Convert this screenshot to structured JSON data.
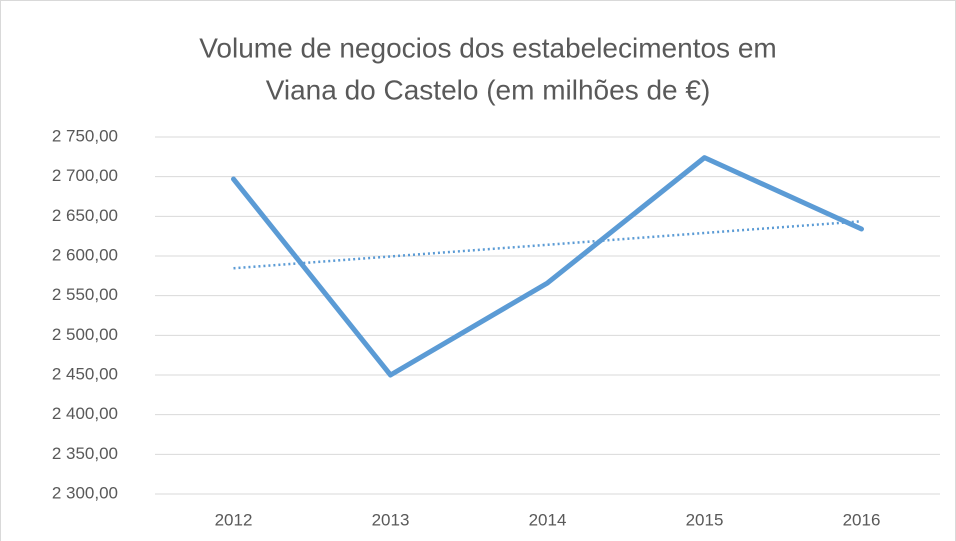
{
  "chart_data": {
    "type": "line",
    "title": [
      "Volume de negocios dos estabelecimentos em",
      "Viana do Castelo (em milhões de €)"
    ],
    "categories": [
      "2012",
      "2013",
      "2014",
      "2015",
      "2016"
    ],
    "series": [
      {
        "color": "#5b9bd5",
        "values": [
          2697,
          2450,
          2566,
          2724,
          2634
        ]
      }
    ],
    "trendline": "linear",
    "ylim": [
      2300,
      2750
    ],
    "yticks": [
      {
        "value": 2300,
        "label": "2 300,00"
      },
      {
        "value": 2350,
        "label": "2 350,00"
      },
      {
        "value": 2400,
        "label": "2 400,00"
      },
      {
        "value": 2450,
        "label": "2 450,00"
      },
      {
        "value": 2500,
        "label": "2 500,00"
      },
      {
        "value": 2550,
        "label": "2 550,00"
      },
      {
        "value": 2600,
        "label": "2 600,00"
      },
      {
        "value": 2650,
        "label": "2 650,00"
      },
      {
        "value": 2700,
        "label": "2 700,00"
      },
      {
        "value": 2750,
        "label": "2 750,00"
      }
    ],
    "grid": true
  }
}
